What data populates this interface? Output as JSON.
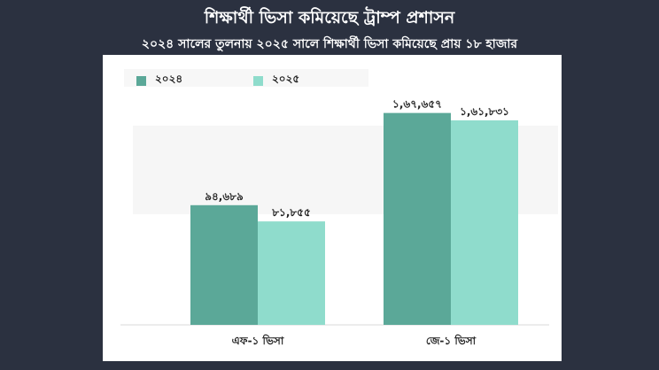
{
  "title": "শিক্ষার্থী ভিসা কমিয়েছে ট্রাম্প প্রশাসন",
  "subtitle": "২০২৪ সালের তুলনায় ২০২৫ সালে শিক্ষার্থী ভিসা কমিয়েছে প্রায় ১৮ হাজার",
  "chart_data": {
    "type": "bar",
    "categories": [
      "এফ-১ ভিসা",
      "জে-১ ভিসা"
    ],
    "series": [
      {
        "name": "২০২৪",
        "values": [
          94689,
          167657
        ],
        "labels": [
          "৯৪,৬৮৯",
          "১,৬৭,৬৫৭"
        ],
        "color": "#5ba898"
      },
      {
        "name": "২০২৫",
        "values": [
          81855,
          161831
        ],
        "labels": [
          "৮১,৮৫৫",
          "১,৬১,৮৩১"
        ],
        "color": "#8fdccc"
      }
    ],
    "ylim": [
      0,
      180000
    ],
    "grid": false,
    "legend": "top-left"
  }
}
